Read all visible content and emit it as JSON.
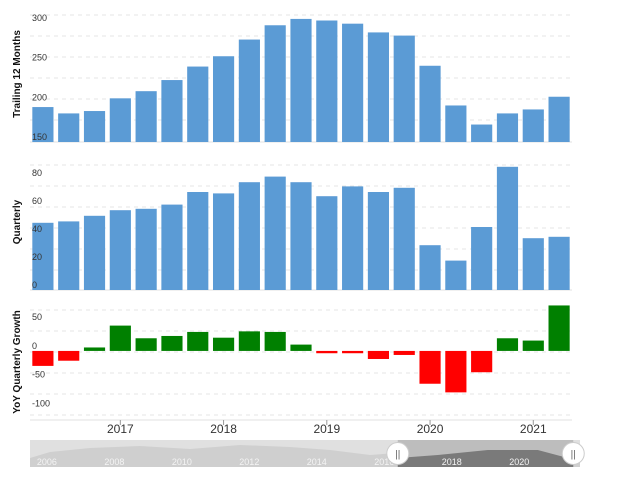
{
  "chart_data": [
    {
      "type": "bar",
      "ylabel": "Trailing 12 Months",
      "ylim": [
        150,
        320
      ],
      "yticks": [
        150,
        200,
        250,
        300
      ],
      "color": "#5b9bd5",
      "values": [
        194,
        186,
        189,
        205,
        214,
        228,
        245,
        258,
        279,
        297,
        305,
        303,
        299,
        288,
        284,
        246,
        196,
        172,
        186,
        191,
        207
      ],
      "grid": true
    },
    {
      "type": "bar",
      "ylabel": "Quarterly",
      "ylim": [
        0,
        95
      ],
      "yticks": [
        0,
        20,
        40,
        60,
        80
      ],
      "color": "#5b9bd5",
      "values": [
        48,
        49,
        53,
        57,
        58,
        61,
        70,
        69,
        77,
        81,
        77,
        67,
        74,
        70,
        73,
        32,
        21,
        45,
        88,
        37,
        38
      ],
      "grid": true
    },
    {
      "type": "bar",
      "ylabel": "YoY Quarterly Growth",
      "ylim": [
        -120,
        85
      ],
      "yticks": [
        -100,
        -50,
        0,
        50
      ],
      "positive_color": "#008000",
      "negative_color": "#ff0000",
      "values": [
        -26,
        -17,
        6,
        44,
        22,
        26,
        33,
        23,
        34,
        33,
        11,
        -4,
        -4,
        -14,
        -7,
        -57,
        -72,
        -37,
        22,
        18,
        79
      ],
      "grid": true
    }
  ],
  "x_axis": {
    "start_quarter": "2016 Q2",
    "labels": [
      {
        "text": "2017",
        "at_bar": 3
      },
      {
        "text": "2018",
        "at_bar": 7
      },
      {
        "text": "2019",
        "at_bar": 11
      },
      {
        "text": "2020",
        "at_bar": 15
      },
      {
        "text": "2021",
        "at_bar": 19
      }
    ]
  },
  "navigator": {
    "year_labels": [
      "2006",
      "2008",
      "2010",
      "2012",
      "2014",
      "2016",
      "2018",
      "2020"
    ],
    "handle_left_label": "||",
    "handle_right_label": "||",
    "selection_start_year": 2016.4,
    "selection_end_year": 2021.6,
    "range_start_year": 2005.5,
    "range_end_year": 2021.8
  }
}
